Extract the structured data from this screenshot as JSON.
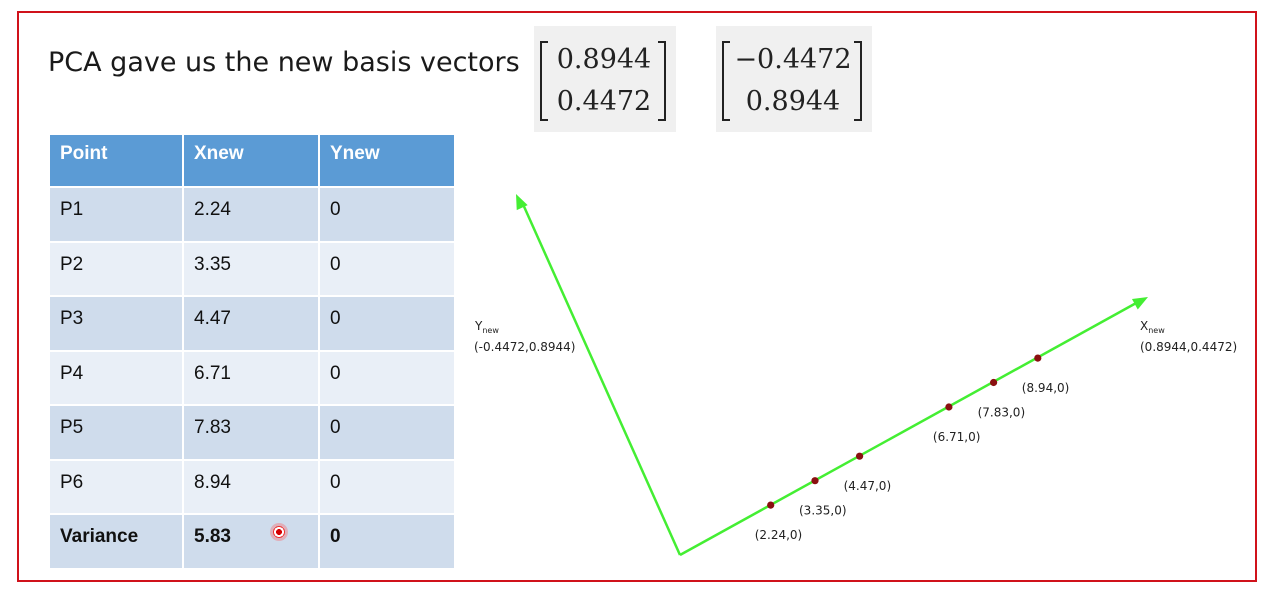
{
  "title": "PCA gave us the new basis vectors",
  "basis_vectors": [
    [
      "0.8944",
      "0.4472"
    ],
    [
      "−0.4472",
      "0.8944"
    ]
  ],
  "table": {
    "headers": [
      "Point",
      "Xnew",
      "Ynew"
    ],
    "rows": [
      [
        "P1",
        "2.24",
        "0"
      ],
      [
        "P2",
        "3.35",
        "0"
      ],
      [
        "P3",
        "4.47",
        "0"
      ],
      [
        "P4",
        "6.71",
        "0"
      ],
      [
        "P5",
        "7.83",
        "0"
      ],
      [
        "P6",
        "8.94",
        "0"
      ]
    ],
    "variance_row": [
      "Variance",
      "5.83",
      "0"
    ]
  },
  "axes": {
    "x_new": {
      "label": "X",
      "sub": "new",
      "vector": "(0.8944,0.4472)"
    },
    "y_new": {
      "label": "Y",
      "sub": "new",
      "vector": "(-0.4472,0.8944)"
    }
  },
  "points": [
    {
      "t": 2.24,
      "label": "(2.24,0)"
    },
    {
      "t": 3.35,
      "label": "(3.35,0)"
    },
    {
      "t": 4.47,
      "label": "(4.47,0)"
    },
    {
      "t": 6.71,
      "label": "(6.71,0)"
    },
    {
      "t": 7.83,
      "label": "(7.83,0)"
    },
    {
      "t": 8.94,
      "label": "(8.94,0)"
    }
  ],
  "colors": {
    "frame": "#d0121b",
    "axis": "#44ee33",
    "point": "#8a1010",
    "header": "#5b9bd5"
  }
}
